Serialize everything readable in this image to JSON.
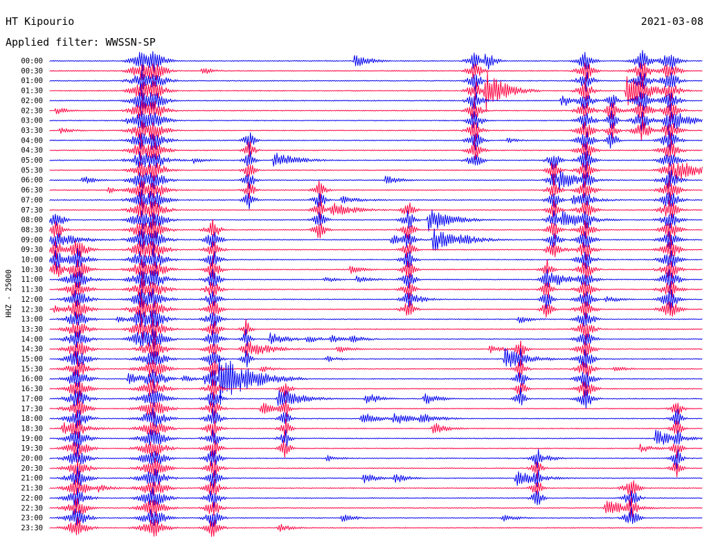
{
  "header": {
    "station": "HT Kipourio",
    "date": "2021-03-08",
    "filter": "Applied filter: WWSSN-SP"
  },
  "chart_data": {
    "type": "helicorder",
    "title": "HT Kipourio",
    "date": "2021-03-08",
    "subtitle": "Applied filter: WWSSN-SP",
    "ylabel": "HHZ - 25000",
    "tick_labels": [
      "00:00",
      "00:30",
      "01:00",
      "01:30",
      "02:00",
      "02:30",
      "03:00",
      "03:30",
      "04:00",
      "04:30",
      "05:00",
      "05:30",
      "06:00",
      "06:30",
      "07:00",
      "07:30",
      "08:00",
      "08:30",
      "09:00",
      "09:30",
      "10:00",
      "10:30",
      "11:00",
      "11:30",
      "12:00",
      "12:30",
      "13:00",
      "13:30",
      "14:00",
      "14:30",
      "15:00",
      "15:30",
      "16:00",
      "16:30",
      "17:00",
      "17:30",
      "18:00",
      "18:30",
      "19:00",
      "19:30",
      "20:00",
      "20:30",
      "21:00",
      "21:30",
      "22:00",
      "22:30",
      "23:00",
      "23:30"
    ],
    "line_minutes": 30,
    "colors": [
      "#0000ee",
      "#ff0040"
    ],
    "events": [
      {
        "t": "00:00",
        "min": 14,
        "dur": 2,
        "amp": 3.5
      },
      {
        "t": "00:00",
        "min": 20,
        "dur": 1,
        "amp": 6
      },
      {
        "t": "00:30",
        "min": 7,
        "dur": 1.5,
        "amp": 2
      },
      {
        "t": "01:30",
        "min": 20,
        "dur": 2.5,
        "amp": 10
      },
      {
        "t": "01:30",
        "min": 26.5,
        "dur": 3,
        "amp": 8
      },
      {
        "t": "02:00",
        "min": 23.5,
        "dur": 2,
        "amp": 3
      },
      {
        "t": "02:30",
        "min": 0.3,
        "dur": 1.5,
        "amp": 2
      },
      {
        "t": "02:30",
        "min": 25.6,
        "dur": 2,
        "amp": 3
      },
      {
        "t": "03:00",
        "min": 3.5,
        "dur": 1,
        "amp": 1.8
      },
      {
        "t": "03:00",
        "min": 28.3,
        "dur": 3,
        "amp": 6
      },
      {
        "t": "03:30",
        "min": 0.5,
        "dur": 2,
        "amp": 1.5
      },
      {
        "t": "04:00",
        "min": 21,
        "dur": 1.5,
        "amp": 1.5
      },
      {
        "t": "05:00",
        "min": 4.8,
        "dur": 2.5,
        "amp": 2
      },
      {
        "t": "05:00",
        "min": 6.6,
        "dur": 2,
        "amp": 1.5
      },
      {
        "t": "05:00",
        "min": 10.3,
        "dur": 3,
        "amp": 4
      },
      {
        "t": "05:30",
        "min": 28.8,
        "dur": 3,
        "amp": 5
      },
      {
        "t": "06:00",
        "min": 1.5,
        "dur": 2,
        "amp": 2
      },
      {
        "t": "06:00",
        "min": 4.3,
        "dur": 2,
        "amp": 3
      },
      {
        "t": "06:00",
        "min": 15.4,
        "dur": 2,
        "amp": 2.5
      },
      {
        "t": "06:00",
        "min": 23.4,
        "dur": 2.5,
        "amp": 5
      },
      {
        "t": "06:30",
        "min": 2.7,
        "dur": 1.5,
        "amp": 1.5
      },
      {
        "t": "07:00",
        "min": 13.4,
        "dur": 3,
        "amp": 2
      },
      {
        "t": "07:00",
        "min": 24,
        "dur": 3,
        "amp": 2.5
      },
      {
        "t": "07:30",
        "min": 12.9,
        "dur": 3,
        "amp": 4
      },
      {
        "t": "08:00",
        "min": 17.4,
        "dur": 3,
        "amp": 6
      },
      {
        "t": "08:00",
        "min": 23.5,
        "dur": 3,
        "amp": 5
      },
      {
        "t": "09:00",
        "min": 0.3,
        "dur": 3,
        "amp": 4
      },
      {
        "t": "09:00",
        "min": 15.7,
        "dur": 2.5,
        "amp": 2.5
      },
      {
        "t": "09:00",
        "min": 17.6,
        "dur": 3,
        "amp": 6
      },
      {
        "t": "09:00",
        "min": 18.8,
        "dur": 3,
        "amp": 3
      },
      {
        "t": "09:30",
        "min": 22.8,
        "dur": 2.5,
        "amp": 2.5
      },
      {
        "t": "10:30",
        "min": 13.8,
        "dur": 2,
        "amp": 2
      },
      {
        "t": "11:00",
        "min": 1,
        "dur": 3,
        "amp": 2
      },
      {
        "t": "11:00",
        "min": 12.6,
        "dur": 2,
        "amp": 1.5
      },
      {
        "t": "11:00",
        "min": 14.1,
        "dur": 2,
        "amp": 2
      },
      {
        "t": "11:00",
        "min": 22.9,
        "dur": 3,
        "amp": 4
      },
      {
        "t": "12:00",
        "min": 16.8,
        "dur": 2,
        "amp": 2
      },
      {
        "t": "12:00",
        "min": 25.5,
        "dur": 2,
        "amp": 2
      },
      {
        "t": "12:30",
        "min": 0.2,
        "dur": 2,
        "amp": 2
      },
      {
        "t": "13:00",
        "min": 3.1,
        "dur": 2,
        "amp": 1.5
      },
      {
        "t": "13:00",
        "min": 21.5,
        "dur": 2,
        "amp": 2
      },
      {
        "t": "14:00",
        "min": 10.1,
        "dur": 2.5,
        "amp": 3
      },
      {
        "t": "14:00",
        "min": 11.8,
        "dur": 2,
        "amp": 2
      },
      {
        "t": "14:00",
        "min": 12.9,
        "dur": 2,
        "amp": 2
      },
      {
        "t": "14:00",
        "min": 13.8,
        "dur": 2,
        "amp": 2
      },
      {
        "t": "14:30",
        "min": 9.2,
        "dur": 3,
        "amp": 4
      },
      {
        "t": "14:30",
        "min": 13.2,
        "dur": 2,
        "amp": 2
      },
      {
        "t": "14:30",
        "min": 20.2,
        "dur": 2,
        "amp": 2
      },
      {
        "t": "15:00",
        "min": 12.7,
        "dur": 2,
        "amp": 1.5
      },
      {
        "t": "15:00",
        "min": 20.9,
        "dur": 3,
        "amp": 5
      },
      {
        "t": "15:30",
        "min": 9.7,
        "dur": 2,
        "amp": 1.5
      },
      {
        "t": "15:30",
        "min": 25.9,
        "dur": 2,
        "amp": 1.5
      },
      {
        "t": "16:00",
        "min": 3.6,
        "dur": 2.5,
        "amp": 3
      },
      {
        "t": "16:00",
        "min": 6.1,
        "dur": 2,
        "amp": 2
      },
      {
        "t": "16:00",
        "min": 7.1,
        "dur": 2,
        "amp": 2.5
      },
      {
        "t": "16:00",
        "min": 7.8,
        "dur": 4,
        "amp": 12
      },
      {
        "t": "17:00",
        "min": 10.5,
        "dur": 3,
        "amp": 5
      },
      {
        "t": "17:00",
        "min": 14.5,
        "dur": 2,
        "amp": 3
      },
      {
        "t": "17:00",
        "min": 17.2,
        "dur": 2,
        "amp": 3
      },
      {
        "t": "17:30",
        "min": 9.7,
        "dur": 2.5,
        "amp": 3
      },
      {
        "t": "18:00",
        "min": 14.3,
        "dur": 2.5,
        "amp": 3
      },
      {
        "t": "18:00",
        "min": 15.8,
        "dur": 2.5,
        "amp": 3
      },
      {
        "t": "18:00",
        "min": 17.0,
        "dur": 2.5,
        "amp": 3
      },
      {
        "t": "18:30",
        "min": 0.6,
        "dur": 3,
        "amp": 3
      },
      {
        "t": "18:30",
        "min": 17.6,
        "dur": 2,
        "amp": 3
      },
      {
        "t": "19:00",
        "min": 27.8,
        "dur": 3,
        "amp": 4
      },
      {
        "t": "19:30",
        "min": 27.1,
        "dur": 2,
        "amp": 2
      },
      {
        "t": "20:00",
        "min": 12.7,
        "dur": 2,
        "amp": 1.5
      },
      {
        "t": "20:00",
        "min": 22.8,
        "dur": 2,
        "amp": 1.5
      },
      {
        "t": "21:00",
        "min": 14.4,
        "dur": 2,
        "amp": 2.5
      },
      {
        "t": "21:00",
        "min": 15.8,
        "dur": 2,
        "amp": 2.5
      },
      {
        "t": "21:00",
        "min": 21.4,
        "dur": 3,
        "amp": 4
      },
      {
        "t": "21:30",
        "min": 2.2,
        "dur": 2,
        "amp": 2
      },
      {
        "t": "22:30",
        "min": 25.5,
        "dur": 3,
        "amp": 4
      },
      {
        "t": "23:00",
        "min": 13.4,
        "dur": 2,
        "amp": 2
      },
      {
        "t": "23:00",
        "min": 20.8,
        "dur": 2,
        "amp": 2
      },
      {
        "t": "23:30",
        "min": 10.5,
        "dur": 2,
        "amp": 2
      }
    ]
  }
}
